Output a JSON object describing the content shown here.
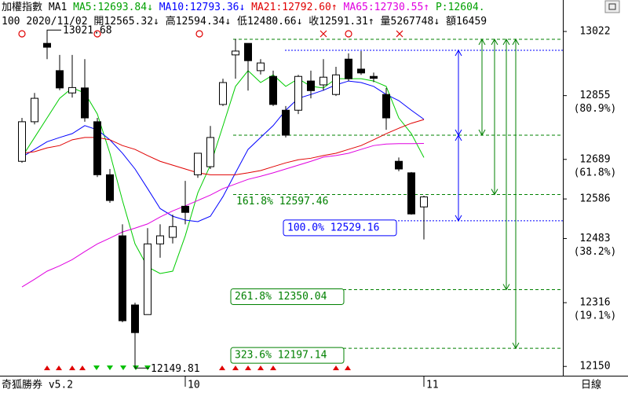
{
  "chart_data": {
    "type": "candlestick",
    "header": [
      [
        {
          "text": "加權指數",
          "color": "#000000"
        },
        {
          "text": "MA1",
          "color": "#000000"
        },
        {
          "text": "MA5:12693.84↓",
          "color": "#00a000"
        },
        {
          "text": "MA10:12793.36↓",
          "color": "#0000ff"
        },
        {
          "text": "MA21:12792.60↑",
          "color": "#e00000"
        },
        {
          "text": "MA65:12730.55↑",
          "color": "#e000e0"
        },
        {
          "text": "P:12604.",
          "color": "#00a000"
        }
      ],
      [
        {
          "text": "100",
          "color": "#000000"
        },
        {
          "text": "2020/11/02",
          "color": "#000000"
        },
        {
          "text": "開12565.32↓",
          "color": "#000000"
        },
        {
          "text": "高12594.34↓",
          "color": "#000000"
        },
        {
          "text": "低12480.66↓",
          "color": "#000000"
        },
        {
          "text": "收12591.31↑",
          "color": "#000000"
        },
        {
          "text": "量5267748↓",
          "color": "#000000"
        },
        {
          "text": "額16459",
          "color": "#000000"
        }
      ]
    ],
    "footer": {
      "left": "奇狐勝券 v5.2",
      "right": "日線"
    },
    "categories": [
      null,
      null,
      null,
      null,
      null,
      null,
      null,
      null,
      null,
      null,
      null,
      null,
      null,
      "10",
      null,
      null,
      null,
      null,
      null,
      null,
      null,
      null,
      null,
      null,
      null,
      null,
      null,
      null,
      null,
      null,
      null,
      null,
      "11"
    ],
    "open": [
      12684,
      12787,
      12991,
      12920,
      12862,
      12875,
      12787,
      12649,
      12490,
      12310,
      12285,
      12469,
      12486,
      12567,
      12649,
      12670,
      12832,
      12961,
      12991,
      12920,
      12905,
      12817,
      12817,
      12893,
      12883,
      12858,
      12950,
      12924,
      12905,
      12858,
      12684,
      12654,
      12565.32
    ],
    "high": [
      12797,
      12862,
      13021.68,
      12961,
      12961,
      12950,
      12797,
      12664,
      12520,
      12316,
      12510,
      12520,
      12545,
      12633,
      12705,
      12776,
      12899,
      13002,
      12991,
      12950,
      12920,
      12828,
      12909,
      12920,
      12950,
      12930,
      12965,
      12971,
      12915,
      12875,
      12694,
      12656,
      12594.34
    ],
    "low": [
      12680,
      12780,
      12950,
      12869,
      12850,
      12787,
      12643,
      12576,
      12265,
      12149.81,
      12285,
      12433,
      12470,
      12520,
      12641,
      12664,
      12828,
      12899,
      12868,
      12910,
      12828,
      12746,
      12807,
      12848,
      12868,
      12854,
      12893,
      12909,
      12890,
      12766,
      12658,
      12545,
      12480.66
    ],
    "close": [
      12787,
      12848,
      12981,
      12875,
      12876,
      12797,
      12649,
      12582,
      12269,
      12238,
      12469,
      12490,
      12514,
      12551,
      12705,
      12746,
      12889,
      12971,
      12946,
      12940,
      12832,
      12752,
      12905,
      12868,
      12903,
      12909,
      12899,
      12914,
      12900,
      12797,
      12664,
      12547,
      12591.31
    ],
    "up_color": "#ffffff",
    "down_color": "#000000",
    "series": [
      {
        "name": "MA5",
        "color": "#00cc00",
        "values": [
          12695,
          12746,
          12797,
          12848,
          12875,
          12862,
          12807,
          12705,
          12582,
          12469,
          12409,
          12392,
          12398,
          12490,
          12602,
          12674,
          12776,
          12879,
          12920,
          12889,
          12909,
          12879,
          12899,
          12879,
          12875,
          12899,
          12899,
          12899,
          12893,
          12879,
          12797,
          12756,
          12693.84
        ]
      },
      {
        "name": "MA10",
        "color": "#0000ff",
        "values": [
          12695,
          12715,
          12735,
          12746,
          12756,
          12777,
          12766,
          12740,
          12705,
          12664,
          12613,
          12561,
          12541,
          12531,
          12527,
          12541,
          12592,
          12654,
          12715,
          12746,
          12777,
          12817,
          12848,
          12858,
          12869,
          12883,
          12893,
          12889,
          12879,
          12858,
          12842,
          12817,
          12793.36
        ]
      },
      {
        "name": "MA21",
        "color": "#e00000",
        "values": [
          12705,
          12709,
          12719,
          12725,
          12740,
          12746,
          12746,
          12740,
          12725,
          12715,
          12699,
          12684,
          12674,
          12664,
          12654,
          12649,
          12649,
          12649,
          12654,
          12660,
          12670,
          12680,
          12688,
          12692,
          12699,
          12705,
          12715,
          12725,
          12740,
          12756,
          12770,
          12783,
          12792.6
        ]
      },
      {
        "name": "MA65",
        "color": "#e000e0",
        "values": [
          12357,
          12377,
          12398,
          12412,
          12428,
          12449,
          12469,
          12484,
          12500,
          12510,
          12521,
          12539,
          12555,
          12568,
          12582,
          12596,
          12613,
          12625,
          12637,
          12645,
          12654,
          12664,
          12674,
          12684,
          12695,
          12699,
          12705,
          12715,
          12725,
          12729,
          12730,
          12730,
          12730.55
        ]
      }
    ],
    "ylim": [
      12132,
      13063
    ],
    "yticks": [
      13022,
      12855,
      12689,
      12586,
      12483,
      12316,
      12150
    ],
    "ytick_notes": [
      {
        "value": 12855,
        "label": "(80.9%)"
      },
      {
        "value": 12689,
        "label": "(61.8%)"
      },
      {
        "value": 12483,
        "label": "(38.2%)"
      },
      {
        "value": 12316,
        "label": "(19.1%)"
      }
    ],
    "levels": [
      {
        "value": 13001.6,
        "color": "#008000"
      },
      {
        "value": 12973,
        "color": "#0000ff"
      },
      {
        "value": 12752,
        "color": "#008000"
      },
      {
        "value": 12597.46,
        "color": "#008000",
        "label": "161.8% 12597.46",
        "boxed": false
      },
      {
        "value": 12529.16,
        "color": "#0000ff",
        "label": "100.0% 12529.16",
        "boxed": true
      },
      {
        "value": 12350.04,
        "color": "#008000",
        "label": "261.8% 12350.04",
        "boxed": true
      },
      {
        "value": 12197.14,
        "color": "#008000",
        "label": "323.6% 12197.14",
        "boxed": true
      }
    ]
  }
}
